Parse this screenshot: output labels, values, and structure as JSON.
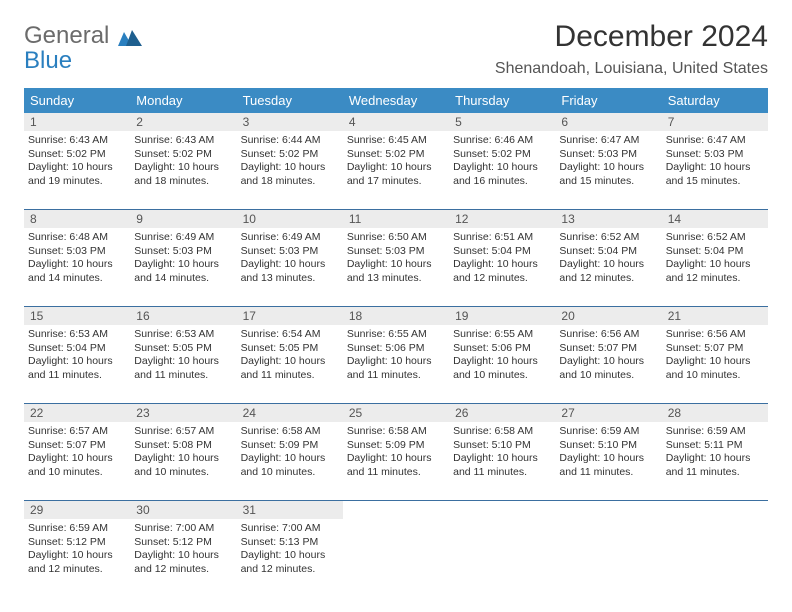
{
  "logo": {
    "general": "General",
    "blue": "Blue"
  },
  "title": "December 2024",
  "location": "Shenandoah, Louisiana, United States",
  "header_bg": "#3b8bc4",
  "daynum_bg": "#ececec",
  "days": [
    "Sunday",
    "Monday",
    "Tuesday",
    "Wednesday",
    "Thursday",
    "Friday",
    "Saturday"
  ],
  "weeks": [
    {
      "nums": [
        "1",
        "2",
        "3",
        "4",
        "5",
        "6",
        "7"
      ],
      "cells": [
        {
          "sr": "Sunrise: 6:43 AM",
          "ss": "Sunset: 5:02 PM",
          "dl": "Daylight: 10 hours and 19 minutes."
        },
        {
          "sr": "Sunrise: 6:43 AM",
          "ss": "Sunset: 5:02 PM",
          "dl": "Daylight: 10 hours and 18 minutes."
        },
        {
          "sr": "Sunrise: 6:44 AM",
          "ss": "Sunset: 5:02 PM",
          "dl": "Daylight: 10 hours and 18 minutes."
        },
        {
          "sr": "Sunrise: 6:45 AM",
          "ss": "Sunset: 5:02 PM",
          "dl": "Daylight: 10 hours and 17 minutes."
        },
        {
          "sr": "Sunrise: 6:46 AM",
          "ss": "Sunset: 5:02 PM",
          "dl": "Daylight: 10 hours and 16 minutes."
        },
        {
          "sr": "Sunrise: 6:47 AM",
          "ss": "Sunset: 5:03 PM",
          "dl": "Daylight: 10 hours and 15 minutes."
        },
        {
          "sr": "Sunrise: 6:47 AM",
          "ss": "Sunset: 5:03 PM",
          "dl": "Daylight: 10 hours and 15 minutes."
        }
      ]
    },
    {
      "nums": [
        "8",
        "9",
        "10",
        "11",
        "12",
        "13",
        "14"
      ],
      "cells": [
        {
          "sr": "Sunrise: 6:48 AM",
          "ss": "Sunset: 5:03 PM",
          "dl": "Daylight: 10 hours and 14 minutes."
        },
        {
          "sr": "Sunrise: 6:49 AM",
          "ss": "Sunset: 5:03 PM",
          "dl": "Daylight: 10 hours and 14 minutes."
        },
        {
          "sr": "Sunrise: 6:49 AM",
          "ss": "Sunset: 5:03 PM",
          "dl": "Daylight: 10 hours and 13 minutes."
        },
        {
          "sr": "Sunrise: 6:50 AM",
          "ss": "Sunset: 5:03 PM",
          "dl": "Daylight: 10 hours and 13 minutes."
        },
        {
          "sr": "Sunrise: 6:51 AM",
          "ss": "Sunset: 5:04 PM",
          "dl": "Daylight: 10 hours and 12 minutes."
        },
        {
          "sr": "Sunrise: 6:52 AM",
          "ss": "Sunset: 5:04 PM",
          "dl": "Daylight: 10 hours and 12 minutes."
        },
        {
          "sr": "Sunrise: 6:52 AM",
          "ss": "Sunset: 5:04 PM",
          "dl": "Daylight: 10 hours and 12 minutes."
        }
      ]
    },
    {
      "nums": [
        "15",
        "16",
        "17",
        "18",
        "19",
        "20",
        "21"
      ],
      "cells": [
        {
          "sr": "Sunrise: 6:53 AM",
          "ss": "Sunset: 5:04 PM",
          "dl": "Daylight: 10 hours and 11 minutes."
        },
        {
          "sr": "Sunrise: 6:53 AM",
          "ss": "Sunset: 5:05 PM",
          "dl": "Daylight: 10 hours and 11 minutes."
        },
        {
          "sr": "Sunrise: 6:54 AM",
          "ss": "Sunset: 5:05 PM",
          "dl": "Daylight: 10 hours and 11 minutes."
        },
        {
          "sr": "Sunrise: 6:55 AM",
          "ss": "Sunset: 5:06 PM",
          "dl": "Daylight: 10 hours and 11 minutes."
        },
        {
          "sr": "Sunrise: 6:55 AM",
          "ss": "Sunset: 5:06 PM",
          "dl": "Daylight: 10 hours and 10 minutes."
        },
        {
          "sr": "Sunrise: 6:56 AM",
          "ss": "Sunset: 5:07 PM",
          "dl": "Daylight: 10 hours and 10 minutes."
        },
        {
          "sr": "Sunrise: 6:56 AM",
          "ss": "Sunset: 5:07 PM",
          "dl": "Daylight: 10 hours and 10 minutes."
        }
      ]
    },
    {
      "nums": [
        "22",
        "23",
        "24",
        "25",
        "26",
        "27",
        "28"
      ],
      "cells": [
        {
          "sr": "Sunrise: 6:57 AM",
          "ss": "Sunset: 5:07 PM",
          "dl": "Daylight: 10 hours and 10 minutes."
        },
        {
          "sr": "Sunrise: 6:57 AM",
          "ss": "Sunset: 5:08 PM",
          "dl": "Daylight: 10 hours and 10 minutes."
        },
        {
          "sr": "Sunrise: 6:58 AM",
          "ss": "Sunset: 5:09 PM",
          "dl": "Daylight: 10 hours and 10 minutes."
        },
        {
          "sr": "Sunrise: 6:58 AM",
          "ss": "Sunset: 5:09 PM",
          "dl": "Daylight: 10 hours and 11 minutes."
        },
        {
          "sr": "Sunrise: 6:58 AM",
          "ss": "Sunset: 5:10 PM",
          "dl": "Daylight: 10 hours and 11 minutes."
        },
        {
          "sr": "Sunrise: 6:59 AM",
          "ss": "Sunset: 5:10 PM",
          "dl": "Daylight: 10 hours and 11 minutes."
        },
        {
          "sr": "Sunrise: 6:59 AM",
          "ss": "Sunset: 5:11 PM",
          "dl": "Daylight: 10 hours and 11 minutes."
        }
      ]
    },
    {
      "nums": [
        "29",
        "30",
        "31",
        "",
        "",
        "",
        ""
      ],
      "cells": [
        {
          "sr": "Sunrise: 6:59 AM",
          "ss": "Sunset: 5:12 PM",
          "dl": "Daylight: 10 hours and 12 minutes."
        },
        {
          "sr": "Sunrise: 7:00 AM",
          "ss": "Sunset: 5:12 PM",
          "dl": "Daylight: 10 hours and 12 minutes."
        },
        {
          "sr": "Sunrise: 7:00 AM",
          "ss": "Sunset: 5:13 PM",
          "dl": "Daylight: 10 hours and 12 minutes."
        },
        null,
        null,
        null,
        null
      ]
    }
  ]
}
